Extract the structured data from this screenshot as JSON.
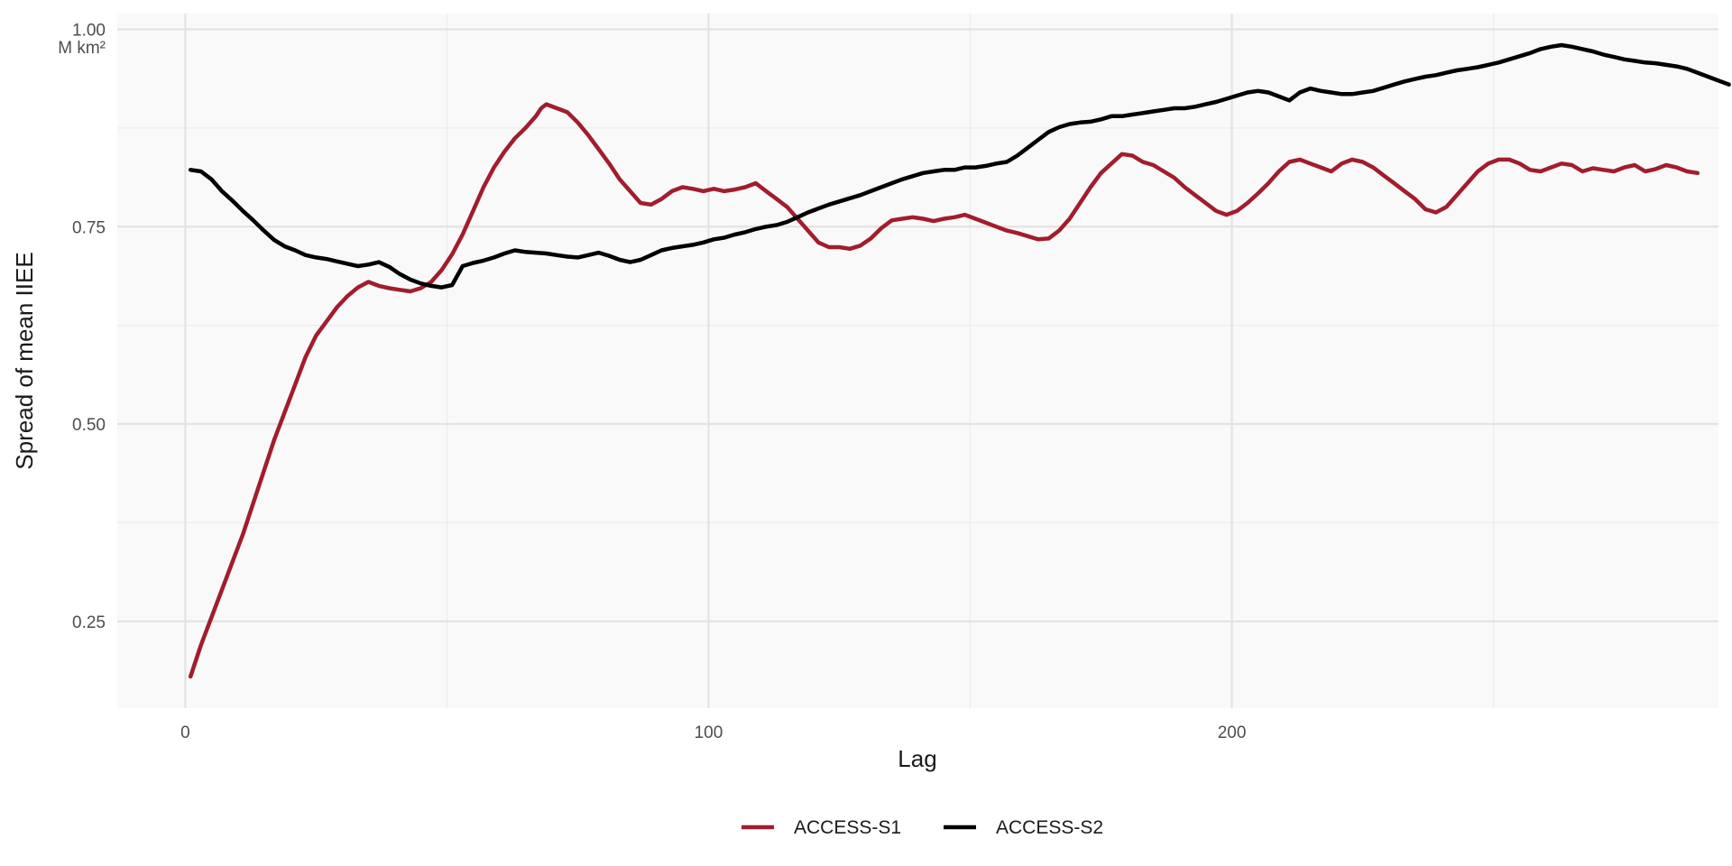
{
  "chart_data": {
    "type": "line",
    "xlabel": "Lag",
    "ylabel": "Spread of mean IIEE",
    "y_unit": "M km²",
    "xlim": [
      -13,
      293
    ],
    "ylim": [
      0.14,
      1.02
    ],
    "x_ticks": [
      0,
      100,
      200
    ],
    "y_ticks": [
      0.25,
      0.5,
      0.75,
      1.0
    ],
    "y_tick_labels": [
      "0.25",
      "0.50",
      "0.75",
      "1.00"
    ],
    "grid": true,
    "legend_position": "bottom",
    "series": [
      {
        "name": "ACCESS-S1",
        "color": "#a11d2e",
        "points": [
          [
            1,
            0.18
          ],
          [
            3,
            0.22
          ],
          [
            5,
            0.255
          ],
          [
            7,
            0.29
          ],
          [
            9,
            0.325
          ],
          [
            11,
            0.36
          ],
          [
            13,
            0.4
          ],
          [
            15,
            0.44
          ],
          [
            17,
            0.48
          ],
          [
            19,
            0.515
          ],
          [
            21,
            0.55
          ],
          [
            23,
            0.585
          ],
          [
            25,
            0.612
          ],
          [
            27,
            0.63
          ],
          [
            29,
            0.648
          ],
          [
            31,
            0.662
          ],
          [
            33,
            0.673
          ],
          [
            35,
            0.68
          ],
          [
            37,
            0.675
          ],
          [
            39,
            0.672
          ],
          [
            41,
            0.67
          ],
          [
            43,
            0.668
          ],
          [
            45,
            0.672
          ],
          [
            47,
            0.68
          ],
          [
            49,
            0.695
          ],
          [
            51,
            0.715
          ],
          [
            53,
            0.74
          ],
          [
            55,
            0.77
          ],
          [
            57,
            0.8
          ],
          [
            59,
            0.825
          ],
          [
            61,
            0.845
          ],
          [
            63,
            0.862
          ],
          [
            65,
            0.875
          ],
          [
            67,
            0.89
          ],
          [
            68,
            0.9
          ],
          [
            69,
            0.905
          ],
          [
            71,
            0.9
          ],
          [
            73,
            0.895
          ],
          [
            75,
            0.882
          ],
          [
            77,
            0.866
          ],
          [
            79,
            0.848
          ],
          [
            81,
            0.83
          ],
          [
            83,
            0.81
          ],
          [
            85,
            0.795
          ],
          [
            87,
            0.78
          ],
          [
            89,
            0.778
          ],
          [
            91,
            0.785
          ],
          [
            93,
            0.795
          ],
          [
            95,
            0.8
          ],
          [
            97,
            0.798
          ],
          [
            99,
            0.795
          ],
          [
            101,
            0.798
          ],
          [
            103,
            0.795
          ],
          [
            105,
            0.797
          ],
          [
            107,
            0.8
          ],
          [
            109,
            0.805
          ],
          [
            111,
            0.795
          ],
          [
            113,
            0.785
          ],
          [
            115,
            0.775
          ],
          [
            117,
            0.76
          ],
          [
            119,
            0.745
          ],
          [
            121,
            0.73
          ],
          [
            123,
            0.724
          ],
          [
            125,
            0.724
          ],
          [
            127,
            0.722
          ],
          [
            129,
            0.726
          ],
          [
            131,
            0.735
          ],
          [
            133,
            0.748
          ],
          [
            135,
            0.758
          ],
          [
            137,
            0.76
          ],
          [
            139,
            0.762
          ],
          [
            141,
            0.76
          ],
          [
            143,
            0.757
          ],
          [
            145,
            0.76
          ],
          [
            147,
            0.762
          ],
          [
            149,
            0.765
          ],
          [
            151,
            0.76
          ],
          [
            153,
            0.755
          ],
          [
            155,
            0.75
          ],
          [
            157,
            0.745
          ],
          [
            159,
            0.742
          ],
          [
            161,
            0.738
          ],
          [
            163,
            0.734
          ],
          [
            165,
            0.735
          ],
          [
            167,
            0.745
          ],
          [
            169,
            0.76
          ],
          [
            171,
            0.78
          ],
          [
            173,
            0.8
          ],
          [
            175,
            0.818
          ],
          [
            177,
            0.83
          ],
          [
            179,
            0.842
          ],
          [
            181,
            0.84
          ],
          [
            183,
            0.832
          ],
          [
            185,
            0.828
          ],
          [
            187,
            0.82
          ],
          [
            189,
            0.812
          ],
          [
            191,
            0.8
          ],
          [
            193,
            0.79
          ],
          [
            195,
            0.78
          ],
          [
            197,
            0.77
          ],
          [
            199,
            0.765
          ],
          [
            201,
            0.77
          ],
          [
            203,
            0.78
          ],
          [
            205,
            0.792
          ],
          [
            207,
            0.805
          ],
          [
            209,
            0.82
          ],
          [
            211,
            0.832
          ],
          [
            213,
            0.835
          ],
          [
            215,
            0.83
          ],
          [
            217,
            0.825
          ],
          [
            219,
            0.82
          ],
          [
            221,
            0.83
          ],
          [
            223,
            0.835
          ],
          [
            225,
            0.832
          ],
          [
            227,
            0.825
          ],
          [
            229,
            0.815
          ],
          [
            231,
            0.805
          ],
          [
            233,
            0.795
          ],
          [
            235,
            0.785
          ],
          [
            237,
            0.772
          ],
          [
            239,
            0.768
          ],
          [
            241,
            0.775
          ],
          [
            243,
            0.79
          ],
          [
            245,
            0.805
          ],
          [
            247,
            0.82
          ],
          [
            249,
            0.83
          ],
          [
            251,
            0.835
          ],
          [
            253,
            0.835
          ],
          [
            255,
            0.83
          ],
          [
            257,
            0.822
          ],
          [
            259,
            0.82
          ],
          [
            261,
            0.825
          ],
          [
            263,
            0.83
          ],
          [
            265,
            0.828
          ],
          [
            267,
            0.82
          ],
          [
            269,
            0.824
          ],
          [
            271,
            0.822
          ],
          [
            273,
            0.82
          ],
          [
            275,
            0.825
          ],
          [
            277,
            0.828
          ],
          [
            279,
            0.82
          ],
          [
            281,
            0.823
          ],
          [
            283,
            0.828
          ],
          [
            285,
            0.825
          ],
          [
            287,
            0.82
          ],
          [
            289,
            0.818
          ]
        ]
      },
      {
        "name": "ACCESS-S2",
        "color": "#000000",
        "points": [
          [
            1,
            0.822
          ],
          [
            3,
            0.82
          ],
          [
            5,
            0.81
          ],
          [
            7,
            0.795
          ],
          [
            9,
            0.783
          ],
          [
            11,
            0.77
          ],
          [
            13,
            0.758
          ],
          [
            15,
            0.745
          ],
          [
            17,
            0.733
          ],
          [
            19,
            0.725
          ],
          [
            21,
            0.72
          ],
          [
            23,
            0.714
          ],
          [
            25,
            0.711
          ],
          [
            27,
            0.709
          ],
          [
            29,
            0.706
          ],
          [
            31,
            0.703
          ],
          [
            33,
            0.7
          ],
          [
            35,
            0.702
          ],
          [
            37,
            0.705
          ],
          [
            39,
            0.699
          ],
          [
            41,
            0.69
          ],
          [
            43,
            0.683
          ],
          [
            45,
            0.678
          ],
          [
            47,
            0.675
          ],
          [
            49,
            0.673
          ],
          [
            51,
            0.676
          ],
          [
            53,
            0.7
          ],
          [
            55,
            0.704
          ],
          [
            57,
            0.707
          ],
          [
            59,
            0.711
          ],
          [
            61,
            0.716
          ],
          [
            63,
            0.72
          ],
          [
            65,
            0.718
          ],
          [
            67,
            0.717
          ],
          [
            69,
            0.716
          ],
          [
            71,
            0.714
          ],
          [
            73,
            0.712
          ],
          [
            75,
            0.711
          ],
          [
            77,
            0.714
          ],
          [
            79,
            0.717
          ],
          [
            81,
            0.713
          ],
          [
            83,
            0.708
          ],
          [
            85,
            0.705
          ],
          [
            87,
            0.708
          ],
          [
            89,
            0.714
          ],
          [
            91,
            0.72
          ],
          [
            93,
            0.723
          ],
          [
            95,
            0.725
          ],
          [
            97,
            0.727
          ],
          [
            99,
            0.73
          ],
          [
            101,
            0.734
          ],
          [
            103,
            0.736
          ],
          [
            105,
            0.74
          ],
          [
            107,
            0.743
          ],
          [
            109,
            0.747
          ],
          [
            111,
            0.75
          ],
          [
            113,
            0.752
          ],
          [
            115,
            0.756
          ],
          [
            117,
            0.762
          ],
          [
            119,
            0.768
          ],
          [
            121,
            0.773
          ],
          [
            123,
            0.778
          ],
          [
            125,
            0.782
          ],
          [
            127,
            0.786
          ],
          [
            129,
            0.79
          ],
          [
            131,
            0.795
          ],
          [
            133,
            0.8
          ],
          [
            135,
            0.805
          ],
          [
            137,
            0.81
          ],
          [
            139,
            0.814
          ],
          [
            141,
            0.818
          ],
          [
            143,
            0.82
          ],
          [
            145,
            0.822
          ],
          [
            147,
            0.822
          ],
          [
            149,
            0.825
          ],
          [
            151,
            0.825
          ],
          [
            153,
            0.827
          ],
          [
            155,
            0.83
          ],
          [
            157,
            0.832
          ],
          [
            159,
            0.84
          ],
          [
            161,
            0.85
          ],
          [
            163,
            0.86
          ],
          [
            165,
            0.87
          ],
          [
            167,
            0.876
          ],
          [
            169,
            0.88
          ],
          [
            171,
            0.882
          ],
          [
            173,
            0.883
          ],
          [
            175,
            0.886
          ],
          [
            177,
            0.89
          ],
          [
            179,
            0.89
          ],
          [
            181,
            0.892
          ],
          [
            183,
            0.894
          ],
          [
            185,
            0.896
          ],
          [
            187,
            0.898
          ],
          [
            189,
            0.9
          ],
          [
            191,
            0.9
          ],
          [
            193,
            0.902
          ],
          [
            195,
            0.905
          ],
          [
            197,
            0.908
          ],
          [
            199,
            0.912
          ],
          [
            201,
            0.916
          ],
          [
            203,
            0.92
          ],
          [
            205,
            0.922
          ],
          [
            207,
            0.92
          ],
          [
            209,
            0.915
          ],
          [
            211,
            0.91
          ],
          [
            213,
            0.92
          ],
          [
            215,
            0.925
          ],
          [
            217,
            0.922
          ],
          [
            219,
            0.92
          ],
          [
            221,
            0.918
          ],
          [
            223,
            0.918
          ],
          [
            225,
            0.92
          ],
          [
            227,
            0.922
          ],
          [
            229,
            0.926
          ],
          [
            231,
            0.93
          ],
          [
            233,
            0.934
          ],
          [
            235,
            0.937
          ],
          [
            237,
            0.94
          ],
          [
            239,
            0.942
          ],
          [
            241,
            0.945
          ],
          [
            243,
            0.948
          ],
          [
            245,
            0.95
          ],
          [
            247,
            0.952
          ],
          [
            249,
            0.955
          ],
          [
            251,
            0.958
          ],
          [
            253,
            0.962
          ],
          [
            255,
            0.966
          ],
          [
            257,
            0.97
          ],
          [
            259,
            0.975
          ],
          [
            261,
            0.978
          ],
          [
            263,
            0.98
          ],
          [
            265,
            0.978
          ],
          [
            267,
            0.975
          ],
          [
            269,
            0.972
          ],
          [
            271,
            0.968
          ],
          [
            273,
            0.965
          ],
          [
            275,
            0.962
          ],
          [
            277,
            0.96
          ],
          [
            279,
            0.958
          ],
          [
            281,
            0.957
          ],
          [
            283,
            0.955
          ],
          [
            285,
            0.953
          ],
          [
            287,
            0.95
          ],
          [
            289,
            0.945
          ],
          [
            291,
            0.94
          ],
          [
            293,
            0.935
          ],
          [
            295,
            0.93
          ]
        ]
      }
    ]
  }
}
